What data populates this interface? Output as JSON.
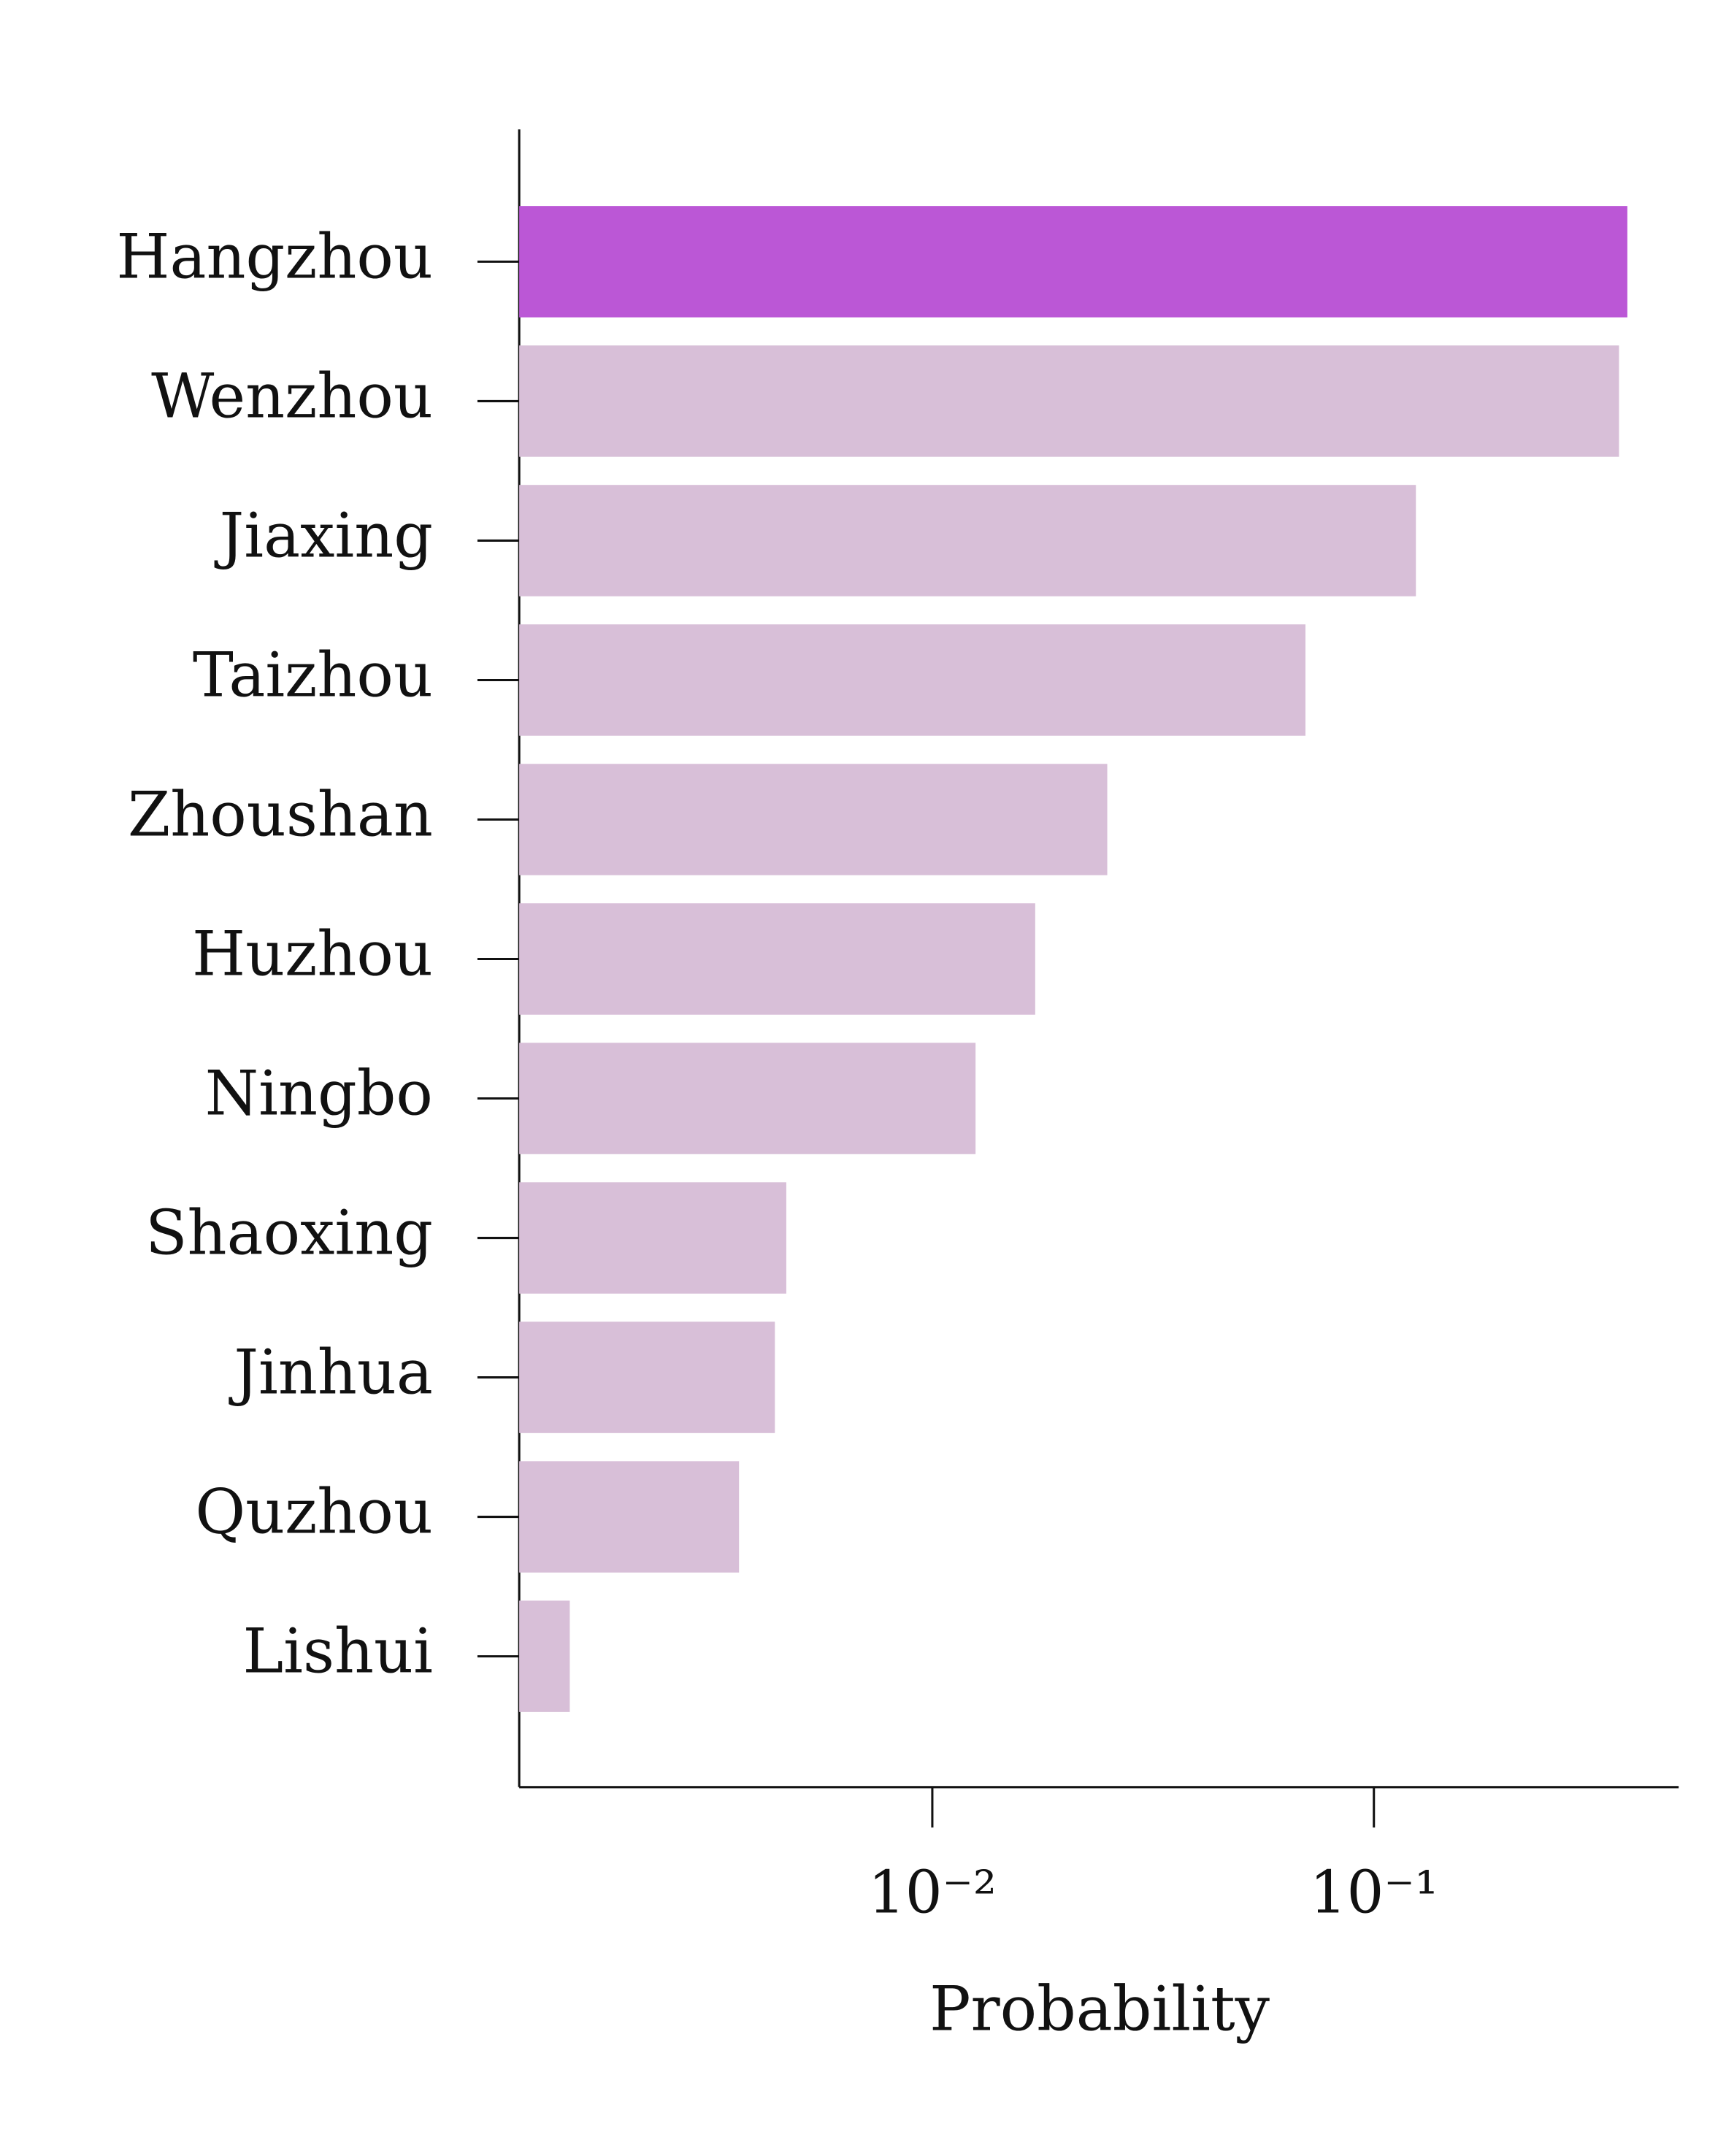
{
  "chart_data": {
    "type": "bar",
    "orientation": "horizontal",
    "x_label": "Probability",
    "categories": [
      "Hangzhou",
      "Wenzhou",
      "Jiaxing",
      "Taizhou",
      "Zhoushan",
      "Huzhou",
      "Ningbo",
      "Shaoxing",
      "Jinhua",
      "Quzhou",
      "Lishui"
    ],
    "values": [
      0.375,
      0.359,
      0.1245,
      0.07,
      0.0249,
      0.0171,
      0.01253,
      0.00467,
      0.0044,
      0.00365,
      0.00151
    ],
    "colors": [
      "#bb57d6",
      "#d8bfd8",
      "#d8bfd8",
      "#d8bfd8",
      "#d8bfd8",
      "#d8bfd8",
      "#d8bfd8",
      "#d8bfd8",
      "#d8bfd8",
      "#d8bfd8",
      "#d8bfd8"
    ],
    "xscale": "log",
    "xlim": [
      0.00116,
      0.49
    ],
    "xticks": [
      {
        "value": 0.01,
        "label": "10⁻²"
      },
      {
        "value": 0.1,
        "label": "10⁻¹"
      }
    ]
  }
}
